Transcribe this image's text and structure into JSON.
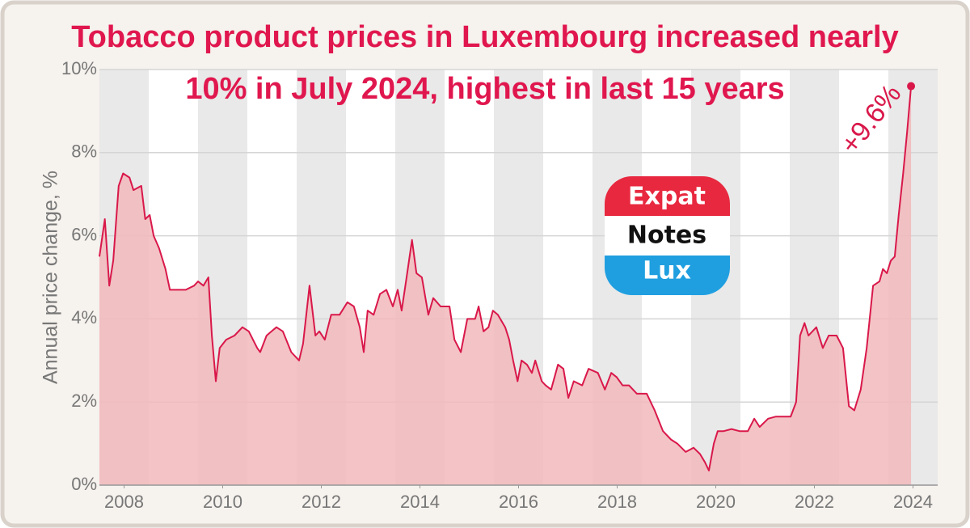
{
  "chart_data": {
    "type": "area",
    "title": [
      "Tobacco product prices in Luxembourg increased nearly",
      "10% in July 2024, highest in last 15 years"
    ],
    "y_label": "Annual price change, %",
    "annotation": "+9.6%",
    "color": "#d9184a",
    "fill": "#f2b8bb",
    "x": [
      2008.0,
      2008.11,
      2008.2,
      2008.28,
      2008.39,
      2008.48,
      2008.61,
      2008.69,
      2008.85,
      2008.93,
      2009.02,
      2009.1,
      2009.21,
      2009.34,
      2009.43,
      2009.75,
      2009.92,
      2010.0,
      2010.11,
      2010.21,
      2010.28,
      2010.36,
      2010.44,
      2010.57,
      2010.74,
      2010.9,
      2011.03,
      2011.2,
      2011.26,
      2011.39,
      2011.49,
      2011.59,
      2011.72,
      2011.89,
      2012.05,
      2012.13,
      2012.26,
      2012.38,
      2012.46,
      2012.57,
      2012.7,
      2012.87,
      2013.03,
      2013.16,
      2013.28,
      2013.36,
      2013.44,
      2013.56,
      2013.69,
      2013.82,
      2013.95,
      2014.05,
      2014.13,
      2014.23,
      2014.34,
      2014.43,
      2014.54,
      2014.67,
      2014.77,
      2014.92,
      2015.1,
      2015.2,
      2015.33,
      2015.46,
      2015.62,
      2015.69,
      2015.79,
      2015.89,
      2015.98,
      2016.08,
      2016.23,
      2016.31,
      2016.39,
      2016.48,
      2016.56,
      2016.67,
      2016.77,
      2016.84,
      2016.97,
      2017.05,
      2017.16,
      2017.3,
      2017.41,
      2017.51,
      2017.62,
      2017.79,
      2017.92,
      2018.11,
      2018.25,
      2018.38,
      2018.49,
      2018.61,
      2018.74,
      2018.9,
      2019.1,
      2019.26,
      2019.43,
      2019.59,
      2019.72,
      2019.89,
      2020.05,
      2020.18,
      2020.28,
      2020.36,
      2020.46,
      2020.54,
      2020.66,
      2020.82,
      2020.98,
      2021.15,
      2021.28,
      2021.39,
      2021.56,
      2021.72,
      2022.02,
      2022.13,
      2022.21,
      2022.3,
      2022.38,
      2022.54,
      2022.67,
      2022.79,
      2022.95,
      2023.08,
      2023.2,
      2023.31,
      2023.44,
      2023.56,
      2023.69,
      2023.82,
      2023.89,
      2023.97,
      2024.05,
      2024.13,
      2024.21,
      2024.3,
      2024.38,
      2024.46
    ],
    "values": [
      5.5,
      6.4,
      4.8,
      5.4,
      7.2,
      7.5,
      7.4,
      7.1,
      7.2,
      6.4,
      6.5,
      6.0,
      5.7,
      5.2,
      4.7,
      4.7,
      4.8,
      4.9,
      4.8,
      5.0,
      3.6,
      2.5,
      3.3,
      3.5,
      3.6,
      3.8,
      3.7,
      3.3,
      3.2,
      3.6,
      3.7,
      3.8,
      3.7,
      3.2,
      3.0,
      3.4,
      4.8,
      3.6,
      3.7,
      3.5,
      4.1,
      4.1,
      4.4,
      4.3,
      3.8,
      3.2,
      4.2,
      4.1,
      4.6,
      4.7,
      4.3,
      4.7,
      4.2,
      5.0,
      5.9,
      5.1,
      5.0,
      4.1,
      4.5,
      4.3,
      4.3,
      3.5,
      3.2,
      4.0,
      4.0,
      4.3,
      3.7,
      3.8,
      4.2,
      4.1,
      3.8,
      3.5,
      3.0,
      2.5,
      3.0,
      2.9,
      2.7,
      3.0,
      2.5,
      2.4,
      2.3,
      2.9,
      2.8,
      2.1,
      2.5,
      2.4,
      2.8,
      2.7,
      2.3,
      2.7,
      2.6,
      2.4,
      2.4,
      2.2,
      2.2,
      1.8,
      1.3,
      1.1,
      1.0,
      0.8,
      0.9,
      0.75,
      0.55,
      0.35,
      1.0,
      1.3,
      1.3,
      1.35,
      1.3,
      1.3,
      1.6,
      1.4,
      1.6,
      1.65,
      1.65,
      2.0,
      3.6,
      3.9,
      3.6,
      3.8,
      3.3,
      3.6,
      3.6,
      3.3,
      1.9,
      1.8,
      2.3,
      3.3,
      4.8,
      4.9,
      5.2,
      5.1,
      5.4,
      5.5,
      6.5,
      7.5,
      8.5,
      9.6
    ],
    "xlim": [
      2008,
      2025
    ],
    "xticks": [
      {
        "value": 2008.5,
        "label": "2008"
      },
      {
        "value": 2010.5,
        "label": "2010"
      },
      {
        "value": 2012.5,
        "label": "2012"
      },
      {
        "value": 2014.5,
        "label": "2014"
      },
      {
        "value": 2016.5,
        "label": "2016"
      },
      {
        "value": 2018.5,
        "label": "2018"
      },
      {
        "value": 2020.5,
        "label": "2020"
      },
      {
        "value": 2022.5,
        "label": "2022"
      },
      {
        "value": 2024.5,
        "label": "2024"
      }
    ],
    "ylim": [
      0,
      10
    ],
    "yticks": [
      {
        "value": 0,
        "label": "0%"
      },
      {
        "value": 2,
        "label": "2%"
      },
      {
        "value": 4,
        "label": "4%"
      },
      {
        "value": 6,
        "label": "6%"
      },
      {
        "value": 8,
        "label": "8%"
      },
      {
        "value": 10,
        "label": "10%"
      }
    ],
    "grid": true,
    "year_stripes": true
  },
  "logo": {
    "top": "Expat",
    "middle": "Notes",
    "bottom": "Lux"
  }
}
